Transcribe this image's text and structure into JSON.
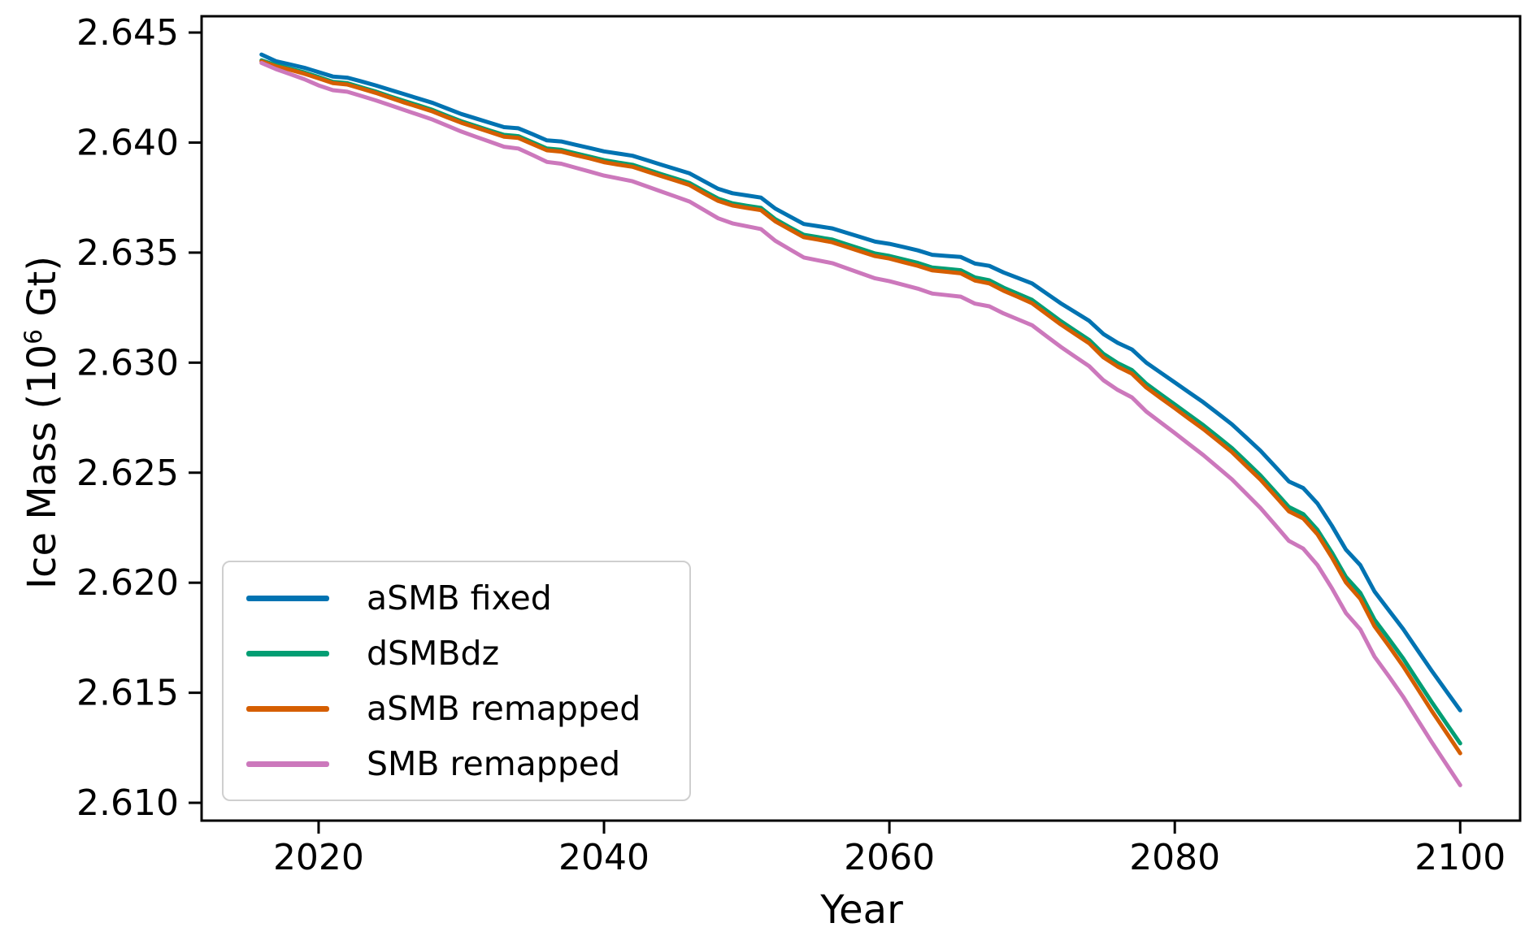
{
  "figure": {
    "background": "#ffffff",
    "xlabel": "Year",
    "ylabel_prefix": "Ice Mass (10",
    "ylabel_sup": "6",
    "ylabel_suffix": " Gt)"
  },
  "legend": {
    "items": [
      {
        "label": "aSMB fixed",
        "color": "#0173b2"
      },
      {
        "label": "dSMBdz",
        "color": "#029e73"
      },
      {
        "label": "aSMB remapped",
        "color": "#d55e00"
      },
      {
        "label": "SMB remapped",
        "color": "#cc78bc"
      }
    ]
  },
  "chart_data": {
    "type": "line",
    "title": "",
    "xlabel": "Year",
    "ylabel": "Ice Mass (10^6 Gt)",
    "xlim": [
      2011.8,
      2104.2
    ],
    "ylim": [
      2.60919,
      2.64574
    ],
    "x_ticks": [
      2020,
      2040,
      2060,
      2080,
      2100
    ],
    "y_ticks": [
      2.645,
      2.64,
      2.635,
      2.63,
      2.625,
      2.62,
      2.615,
      2.61
    ],
    "y_tick_labels": [
      "2.645",
      "2.640",
      "2.635",
      "2.630",
      "2.625",
      "2.620",
      "2.615",
      "2.610"
    ],
    "grid": false,
    "legend_position": "lower left",
    "line_width": 5,
    "x": [
      2016,
      2017,
      2018,
      2019,
      2020,
      2021,
      2022,
      2023,
      2024,
      2025,
      2026,
      2027,
      2028,
      2029,
      2030,
      2031,
      2032,
      2033,
      2034,
      2035,
      2036,
      2037,
      2038,
      2039,
      2040,
      2041,
      2042,
      2043,
      2044,
      2045,
      2046,
      2047,
      2048,
      2049,
      2050,
      2051,
      2052,
      2053,
      2054,
      2055,
      2056,
      2057,
      2058,
      2059,
      2060,
      2061,
      2062,
      2063,
      2064,
      2065,
      2066,
      2067,
      2068,
      2069,
      2070,
      2071,
      2072,
      2073,
      2074,
      2075,
      2076,
      2077,
      2078,
      2079,
      2080,
      2081,
      2082,
      2083,
      2084,
      2085,
      2086,
      2087,
      2088,
      2089,
      2090,
      2091,
      2092,
      2093,
      2094,
      2095,
      2096,
      2097,
      2098,
      2099,
      2100
    ],
    "series": [
      {
        "name": "aSMB fixed",
        "color": "#0173b2",
        "values": [
          2.644,
          2.6437,
          2.64355,
          2.6434,
          2.6432,
          2.643,
          2.64295,
          2.64278,
          2.6426,
          2.6424,
          2.6422,
          2.642,
          2.6418,
          2.64155,
          2.6413,
          2.6411,
          2.6409,
          2.6407,
          2.64065,
          2.64038,
          2.6401,
          2.64005,
          2.6399,
          2.63975,
          2.6396,
          2.6395,
          2.6394,
          2.6392,
          2.639,
          2.6388,
          2.6386,
          2.63825,
          2.6379,
          2.6377,
          2.6376,
          2.6375,
          2.637,
          2.63665,
          2.6363,
          2.6362,
          2.6361,
          2.6359,
          2.6357,
          2.6355,
          2.6354,
          2.63525,
          2.6351,
          2.6349,
          2.63485,
          2.6348,
          2.6345,
          2.6344,
          2.6341,
          2.63385,
          2.6336,
          2.63315,
          2.6327,
          2.6323,
          2.6319,
          2.6313,
          2.6309,
          2.6306,
          2.63,
          2.62955,
          2.6291,
          2.62865,
          2.6282,
          2.6277,
          2.6272,
          2.6266,
          2.626,
          2.6253,
          2.6246,
          2.6243,
          2.6236,
          2.6226,
          2.6215,
          2.6208,
          2.6196,
          2.61875,
          2.6179,
          2.61695,
          2.616,
          2.6151,
          2.6142
        ]
      },
      {
        "name": "dSMBdz",
        "color": "#029e73",
        "values": [
          2.64374,
          2.64352,
          2.64336,
          2.64319,
          2.64298,
          2.64276,
          2.6427,
          2.64251,
          2.64232,
          2.6421,
          2.64189,
          2.64169,
          2.64148,
          2.64122,
          2.64097,
          2.64076,
          2.64055,
          2.64035,
          2.64029,
          2.64001,
          2.63973,
          2.63967,
          2.63951,
          2.63936,
          2.6392,
          2.63909,
          2.63899,
          2.63878,
          2.63857,
          2.63837,
          2.63816,
          2.6378,
          2.63745,
          2.63724,
          2.63713,
          2.63703,
          2.63652,
          2.63616,
          2.63581,
          2.6357,
          2.63559,
          2.63538,
          2.63517,
          2.63496,
          2.63485,
          2.63469,
          2.63453,
          2.63432,
          2.63426,
          2.6342,
          2.63387,
          2.63374,
          2.63341,
          2.63313,
          2.63285,
          2.63237,
          2.63189,
          2.63146,
          2.63103,
          2.6304,
          2.62998,
          2.62966,
          2.62904,
          2.62857,
          2.6281,
          2.62763,
          2.62716,
          2.62664,
          2.62612,
          2.6255,
          2.62488,
          2.62416,
          2.62344,
          2.62312,
          2.6224,
          2.62138,
          2.62026,
          2.61954,
          2.61832,
          2.61745,
          2.61656,
          2.61557,
          2.61458,
          2.61364,
          2.6127
        ]
      },
      {
        "name": "aSMB remapped",
        "color": "#d55e00",
        "values": [
          2.64369,
          2.64347,
          2.64331,
          2.64313,
          2.64292,
          2.6427,
          2.64264,
          2.64245,
          2.64226,
          2.64204,
          2.64182,
          2.64162,
          2.64141,
          2.64115,
          2.6409,
          2.64069,
          2.64048,
          2.64027,
          2.64021,
          2.63993,
          2.63965,
          2.63959,
          2.63943,
          2.63928,
          2.63911,
          2.639,
          2.6389,
          2.63869,
          2.63848,
          2.63828,
          2.63807,
          2.6377,
          2.63735,
          2.63714,
          2.63703,
          2.63693,
          2.63642,
          2.63606,
          2.6357,
          2.63559,
          2.63547,
          2.63526,
          2.63505,
          2.63484,
          2.63473,
          2.63456,
          2.6344,
          2.63419,
          2.63413,
          2.63406,
          2.63373,
          2.6336,
          2.63327,
          2.63299,
          2.6327,
          2.63222,
          2.63174,
          2.63131,
          2.63088,
          2.63024,
          2.62982,
          2.6295,
          2.62887,
          2.6284,
          2.62793,
          2.62745,
          2.62698,
          2.62646,
          2.62594,
          2.62531,
          2.62469,
          2.62397,
          2.62324,
          2.62292,
          2.6222,
          2.62116,
          2.62001,
          2.61927,
          2.61802,
          2.61713,
          2.61621,
          2.6152,
          2.61418,
          2.61322,
          2.61225
        ]
      },
      {
        "name": "SMB remapped",
        "color": "#cc78bc",
        "values": [
          2.64362,
          2.64334,
          2.64311,
          2.64288,
          2.6426,
          2.64238,
          2.64231,
          2.64212,
          2.64192,
          2.6417,
          2.64148,
          2.64126,
          2.64104,
          2.64077,
          2.6405,
          2.64027,
          2.64004,
          2.63981,
          2.63973,
          2.63943,
          2.63912,
          2.63904,
          2.63886,
          2.63868,
          2.6385,
          2.63837,
          2.63824,
          2.63801,
          2.63778,
          2.63755,
          2.63732,
          2.63694,
          2.63656,
          2.63633,
          2.6362,
          2.63607,
          2.63554,
          2.63516,
          2.63478,
          2.63465,
          2.63452,
          2.63429,
          2.63406,
          2.63383,
          2.6337,
          2.63353,
          2.63336,
          2.63314,
          2.63307,
          2.633,
          2.63268,
          2.63256,
          2.63224,
          2.63197,
          2.6317,
          2.63121,
          2.63072,
          2.63028,
          2.62984,
          2.6292,
          2.62876,
          2.62842,
          2.62778,
          2.62729,
          2.6268,
          2.6263,
          2.6258,
          2.62525,
          2.6247,
          2.62405,
          2.6234,
          2.62265,
          2.6219,
          2.62155,
          2.6208,
          2.61976,
          2.61862,
          2.61788,
          2.61664,
          2.61575,
          2.61482,
          2.61379,
          2.61276,
          2.61178,
          2.6108
        ]
      }
    ]
  }
}
